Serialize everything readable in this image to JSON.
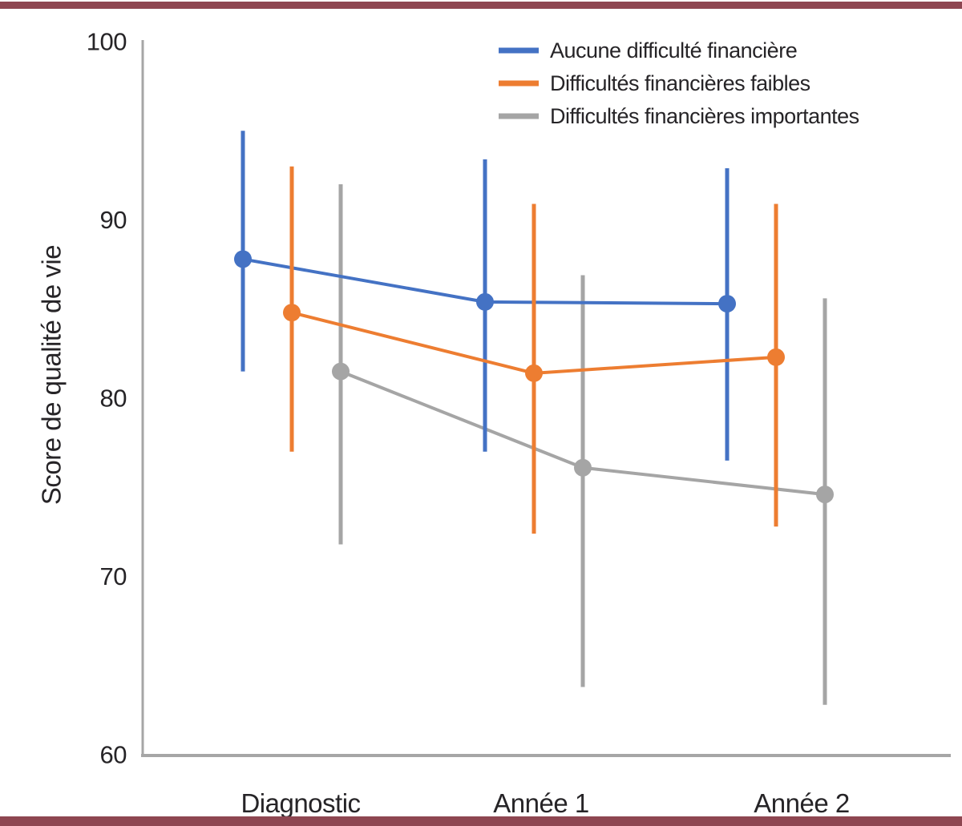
{
  "frame": {
    "accent_color": "#8e4651",
    "background": "#ffffff"
  },
  "chart_data": {
    "type": "line",
    "title": "",
    "xlabel": "",
    "ylabel": "Score de qualité de vie",
    "categories": [
      "Diagnostic",
      "Année 1",
      "Année 2"
    ],
    "ylim": [
      60,
      100
    ],
    "yticks": [
      60,
      70,
      80,
      90,
      100
    ],
    "grid": false,
    "error_bars": true,
    "legend_position": "top-right-inside",
    "axis_color": "#a6a6a6",
    "text_color": "#262427",
    "series": [
      {
        "name": "Aucune difficulté financière",
        "color": "#4472c4",
        "values": [
          87.8,
          85.4,
          85.3
        ],
        "ci_low": [
          81.5,
          77.0,
          76.5
        ],
        "ci_high": [
          95.0,
          93.4,
          92.9
        ]
      },
      {
        "name": "Difficultés financières faibles",
        "color": "#ed7d31",
        "values": [
          84.8,
          81.4,
          82.3
        ],
        "ci_low": [
          77.0,
          72.4,
          72.8
        ],
        "ci_high": [
          93.0,
          90.9,
          90.9
        ]
      },
      {
        "name": "Difficultés financières importantes",
        "color": "#a5a5a5",
        "values": [
          81.5,
          76.1,
          74.6
        ],
        "ci_low": [
          71.8,
          63.8,
          62.8
        ],
        "ci_high": [
          92.0,
          86.9,
          85.6
        ]
      }
    ]
  }
}
